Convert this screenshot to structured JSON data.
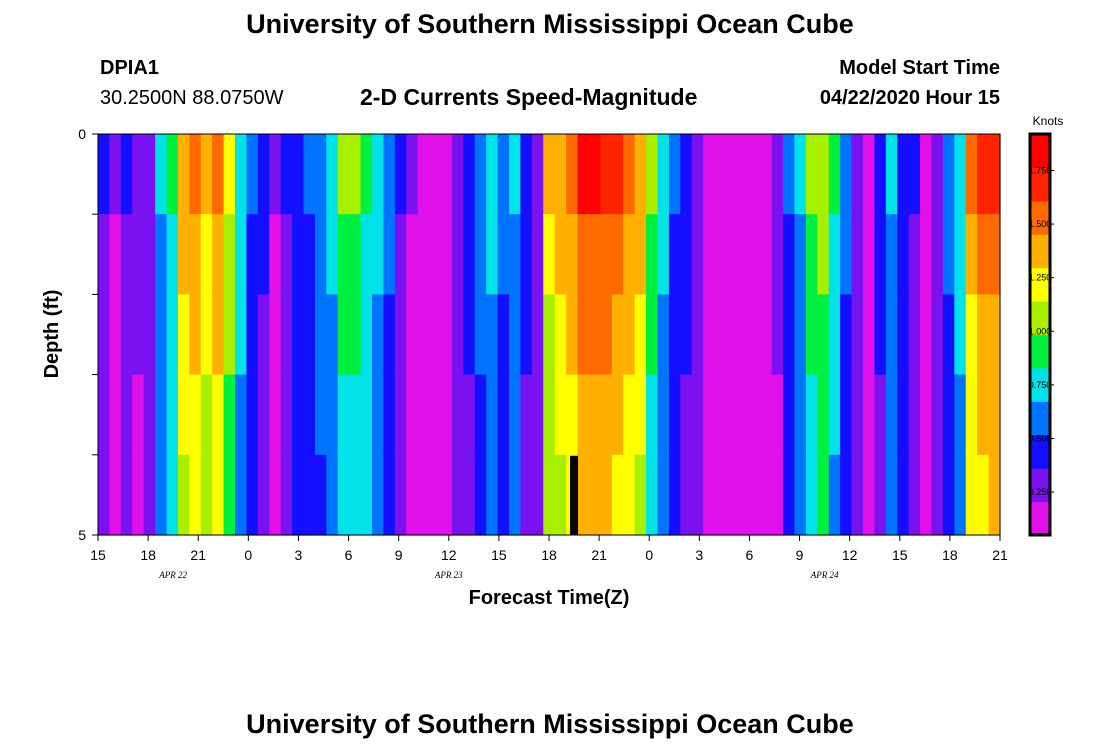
{
  "page": {
    "title_top": "University of Southern Mississippi Ocean Cube",
    "title_bottom": "University of Southern Mississippi Ocean Cube"
  },
  "header": {
    "station": "DPIA1",
    "coords": "30.2500N 88.0750W",
    "plot_title": "2-D Currents Speed-Magnitude",
    "model_label": "Model Start Time",
    "model_time": "04/22/2020 Hour 15"
  },
  "chart_data": {
    "type": "heatmap",
    "title": "2-D Currents Speed-Magnitude",
    "xlabel": "Forecast Time(Z)",
    "ylabel": "Depth (ft)",
    "x_start_hour": 15,
    "x_hours_total": 54,
    "hour_ticks": [
      "15",
      "18",
      "21",
      "0",
      "3",
      "6",
      "9",
      "12",
      "15",
      "18",
      "21",
      "0",
      "3",
      "6",
      "9",
      "12",
      "15",
      "18",
      "21"
    ],
    "date_labels": [
      {
        "text": "APR 22",
        "hour": 19.5
      },
      {
        "text": "APR 23",
        "hour": 36
      },
      {
        "text": "APR 24",
        "hour": 58.5
      }
    ],
    "ylim": [
      0,
      5
    ],
    "y_ticks": [
      "0",
      "5"
    ],
    "colorbar": {
      "unit": "Knots",
      "min": 0.05,
      "max": 1.92,
      "ticks": [
        "0.250",
        "0.500",
        "0.750",
        "1.000",
        "1.250",
        "1.500",
        "1.750"
      ],
      "colors": [
        "#e010e8",
        "#7a12f0",
        "#1410ff",
        "#0074ff",
        "#00e2e8",
        "#00f040",
        "#a8f000",
        "#ffff00",
        "#ffb000",
        "#ff6a00",
        "#ff2400",
        "#ff0000"
      ]
    },
    "depth_layers": 5,
    "column_values": [
      0.4,
      0.22,
      0.38,
      0.25,
      0.3,
      0.68,
      0.88,
      1.45,
      1.55,
      1.42,
      1.58,
      1.2,
      0.8,
      0.55,
      0.42,
      0.22,
      0.4,
      0.48,
      0.55,
      0.65,
      0.75,
      1.0,
      1.02,
      0.88,
      0.75,
      0.6,
      0.4,
      0.22,
      0.15,
      0.16,
      0.2,
      0.3,
      0.45,
      0.62,
      0.78,
      0.6,
      0.68,
      0.45,
      0.32,
      1.32,
      1.45,
      1.6,
      1.78,
      1.78,
      1.75,
      1.68,
      1.55,
      1.45,
      1.0,
      0.75,
      0.55,
      0.45,
      0.3,
      0.16,
      0.14,
      0.14,
      0.15,
      0.16,
      0.16,
      0.25,
      0.55,
      0.72,
      1.0,
      1.1,
      0.85,
      0.6,
      0.32,
      0.2,
      0.45,
      0.7,
      0.5,
      0.38,
      0.2,
      0.32,
      0.6,
      0.8,
      1.5,
      1.65,
      1.7
    ],
    "depth_profile": [
      1.0,
      0.9,
      0.85,
      0.8,
      0.77
    ],
    "black_bar_hour": 43.5
  }
}
